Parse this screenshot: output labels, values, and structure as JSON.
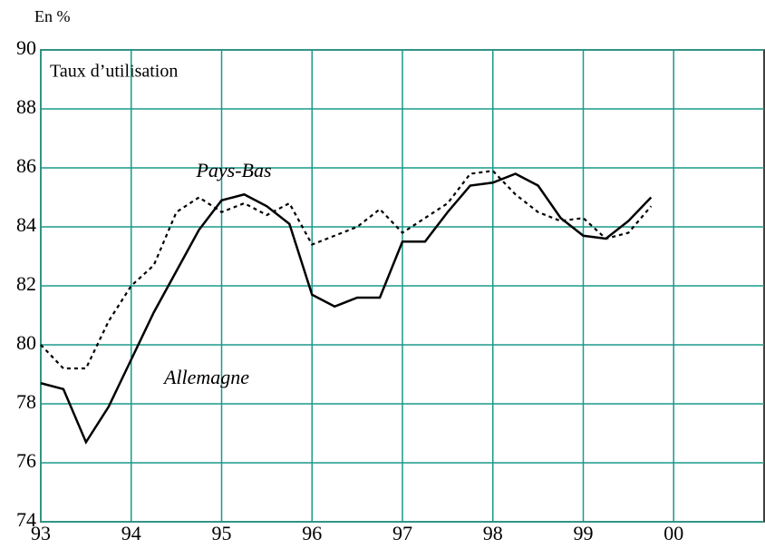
{
  "chart_data": {
    "type": "line",
    "unit_label": "En %",
    "title": "Taux d’utilisation",
    "x": [
      1993,
      1993.25,
      1993.5,
      1993.75,
      1994,
      1994.25,
      1994.5,
      1994.75,
      1995,
      1995.25,
      1995.5,
      1995.75,
      1996,
      1996.25,
      1996.5,
      1996.75,
      1997,
      1997.25,
      1997.5,
      1997.75,
      1998,
      1998.25,
      1998.5,
      1998.75,
      1999,
      1999.25,
      1999.5,
      1999.75
    ],
    "series": [
      {
        "name": "Allemagne",
        "color": "#000000",
        "line_style": "solid",
        "values": [
          78.7,
          78.5,
          76.7,
          77.9,
          79.5,
          81.1,
          82.5,
          83.9,
          84.9,
          85.1,
          84.7,
          84.1,
          81.7,
          81.3,
          81.6,
          81.6,
          83.5,
          83.5,
          84.5,
          85.4,
          85.5,
          85.8,
          85.4,
          84.3,
          83.7,
          83.6,
          84.2,
          85.0
        ]
      },
      {
        "name": "Pays-Bas",
        "color": "#000000",
        "line_style": "dotted",
        "values": [
          80.0,
          79.2,
          79.2,
          80.8,
          82.0,
          82.7,
          84.5,
          85.0,
          84.5,
          84.8,
          84.4,
          84.8,
          83.4,
          83.7,
          84.0,
          84.6,
          83.8,
          84.3,
          84.8,
          85.8,
          85.9,
          85.1,
          84.5,
          84.2,
          84.3,
          83.6,
          83.8,
          84.7
        ]
      }
    ],
    "xlim": [
      1993,
      2001
    ],
    "xticks": [
      {
        "value": 1993,
        "label": "93"
      },
      {
        "value": 1994,
        "label": "94"
      },
      {
        "value": 1995,
        "label": "95"
      },
      {
        "value": 1996,
        "label": "96"
      },
      {
        "value": 1997,
        "label": "97"
      },
      {
        "value": 1998,
        "label": "98"
      },
      {
        "value": 1999,
        "label": "99"
      },
      {
        "value": 2000,
        "label": "00"
      }
    ],
    "ylim": [
      74,
      90
    ],
    "yticks": [
      74,
      76,
      78,
      80,
      82,
      84,
      86,
      88,
      90
    ],
    "grid": true,
    "grid_color": "#1a9a8a"
  }
}
